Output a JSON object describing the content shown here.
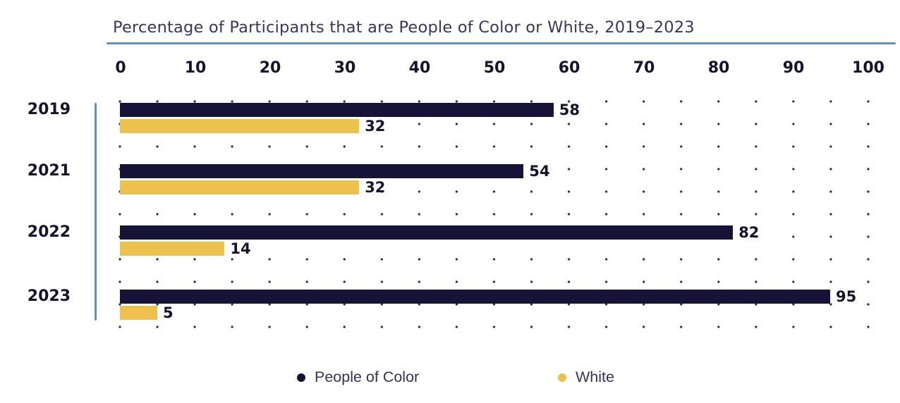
{
  "title": "Percentage of Participants that are People of Color or White, 2019–2023",
  "colors": {
    "people_of_color": "#171237",
    "white": "#edc14d",
    "axis_accent_blue": "#5d91c8",
    "text_navy": "#17132f",
    "grid_dot": "#2b2753"
  },
  "chart_data": {
    "type": "bar",
    "orientation": "horizontal",
    "title": "Percentage of Participants that are People of Color or White, 2019–2023",
    "categories": [
      "2019",
      "2021",
      "2022",
      "2023"
    ],
    "series": [
      {
        "name": "People of Color",
        "color": "#171237",
        "values": [
          58,
          54,
          82,
          95
        ]
      },
      {
        "name": "White",
        "color": "#edc14d",
        "values": [
          32,
          32,
          14,
          5
        ]
      }
    ],
    "x_ticks": [
      0,
      10,
      20,
      30,
      40,
      50,
      60,
      70,
      80,
      90,
      100
    ],
    "xlim": [
      0,
      100
    ],
    "xlabel": "",
    "ylabel": "",
    "grid": "dotted",
    "data_labels": true,
    "legend_position": "bottom-center"
  },
  "legend": {
    "items": [
      {
        "label": "People of Color",
        "color": "#171237"
      },
      {
        "label": "White",
        "color": "#edc14d"
      }
    ]
  }
}
